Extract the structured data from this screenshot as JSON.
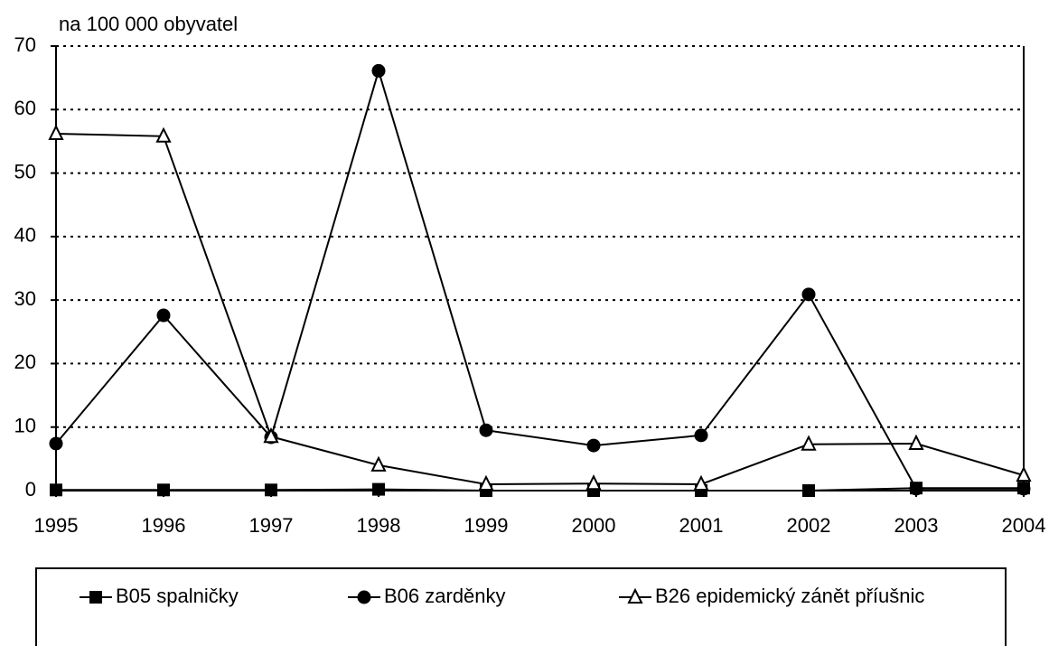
{
  "chart_data": {
    "type": "line",
    "y_axis_label": "na 100 000 obyvatel",
    "categories": [
      "1995",
      "1996",
      "1997",
      "1998",
      "1999",
      "2000",
      "2001",
      "2002",
      "2003",
      "2004"
    ],
    "series": [
      {
        "name": "B05 spalničky",
        "color": "#000000",
        "marker": "square",
        "values": [
          0.1,
          0.1,
          0.1,
          0.2,
          0.0,
          0.0,
          0.0,
          0.0,
          0.4,
          0.4
        ]
      },
      {
        "name": "B06 zarděnky",
        "color": "#000000",
        "marker": "circle",
        "values": [
          7.4,
          27.6,
          8.4,
          66.1,
          9.5,
          7.1,
          8.7,
          30.9,
          0.3,
          0.3
        ]
      },
      {
        "name": "B26 epidemický zánět příušnic",
        "color": "#000000",
        "marker": "triangle",
        "values": [
          56.2,
          55.8,
          8.5,
          4.0,
          1.0,
          1.1,
          1.0,
          7.3,
          7.4,
          2.4
        ]
      }
    ],
    "ylim": [
      0,
      70
    ],
    "yticks": [
      0,
      10,
      20,
      30,
      40,
      50,
      60,
      70
    ],
    "grid": true,
    "legend": "bottom"
  }
}
